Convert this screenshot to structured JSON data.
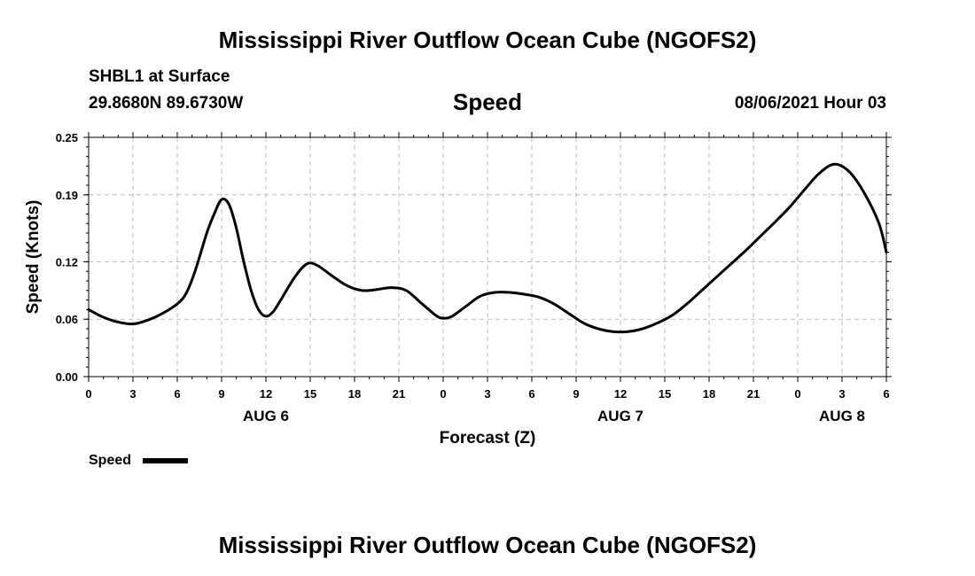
{
  "header": {
    "top_title": "Mississippi River Outflow Ocean Cube (NGOFS2)",
    "station": "SHBL1 at Surface",
    "coordinates": "29.8680N  89.6730W",
    "variable": "Speed",
    "timestamp": "08/06/2021 Hour 03"
  },
  "footer": {
    "bottom_title": "Mississippi River Outflow Ocean Cube (NGOFS2)"
  },
  "chart_data": {
    "type": "line",
    "title": "Speed",
    "xlabel": "Forecast (Z)",
    "ylabel": "Speed (Knots)",
    "xlim": [
      0,
      54
    ],
    "ylim": [
      0,
      0.25
    ],
    "yticks": [
      0.0,
      0.06,
      0.12,
      0.19,
      0.25
    ],
    "ytick_labels": [
      "0.00",
      "0.06",
      "0.12",
      "0.19",
      "0.25"
    ],
    "xticks": [
      0,
      3,
      6,
      9,
      12,
      15,
      18,
      21,
      24,
      27,
      30,
      33,
      36,
      39,
      42,
      45,
      48,
      51,
      54
    ],
    "xtick_labels": [
      "0",
      "3",
      "6",
      "9",
      "12",
      "15",
      "18",
      "21",
      "0",
      "3",
      "6",
      "9",
      "12",
      "15",
      "18",
      "21",
      "0",
      "3",
      "6"
    ],
    "day_labels": [
      {
        "x": 12,
        "label": "AUG 6"
      },
      {
        "x": 36,
        "label": "AUG 7"
      },
      {
        "x": 51,
        "label": "AUG 8"
      }
    ],
    "grid": true,
    "legend": {
      "label": "Speed",
      "position": "bottom-left"
    },
    "series": [
      {
        "name": "Speed",
        "x": [
          0,
          1,
          2,
          3,
          4,
          5,
          6,
          6.6,
          7.2,
          8,
          8.5,
          9,
          9.5,
          10,
          10.5,
          11,
          11.5,
          12,
          12.5,
          13,
          14,
          14.8,
          15.5,
          16.5,
          17.5,
          18.5,
          19.5,
          20.5,
          21.5,
          22.5,
          23.5,
          24,
          24.6,
          25.5,
          26.5,
          27.5,
          28.5,
          29.5,
          30.5,
          31.5,
          32.5,
          33.5,
          34.5,
          35.5,
          36.5,
          37.5,
          38.5,
          39.5,
          40.5,
          41.5,
          42.5,
          43.5,
          44.5,
          45.5,
          46.5,
          47.5,
          48.5,
          49.5,
          50.5,
          51.5,
          52.5,
          53.5,
          54
        ],
        "values": [
          0.07,
          0.062,
          0.057,
          0.055,
          0.059,
          0.066,
          0.076,
          0.087,
          0.11,
          0.15,
          0.17,
          0.185,
          0.18,
          0.155,
          0.12,
          0.09,
          0.07,
          0.063,
          0.068,
          0.08,
          0.105,
          0.118,
          0.116,
          0.105,
          0.095,
          0.09,
          0.091,
          0.093,
          0.09,
          0.077,
          0.064,
          0.061,
          0.063,
          0.073,
          0.084,
          0.088,
          0.088,
          0.086,
          0.083,
          0.076,
          0.066,
          0.056,
          0.05,
          0.047,
          0.047,
          0.05,
          0.056,
          0.064,
          0.076,
          0.09,
          0.104,
          0.118,
          0.132,
          0.147,
          0.162,
          0.178,
          0.196,
          0.213,
          0.222,
          0.214,
          0.192,
          0.16,
          0.13
        ]
      }
    ]
  }
}
